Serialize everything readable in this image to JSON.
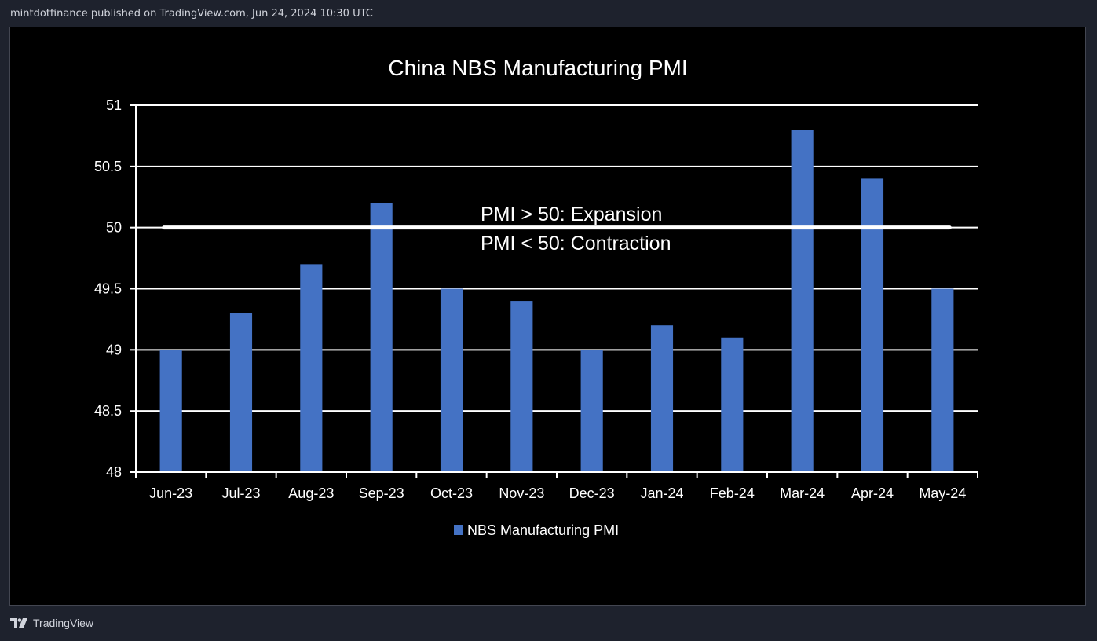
{
  "header": {
    "attribution": "mintdotfinance published on TradingView.com, Jun 24, 2024 10:30 UTC"
  },
  "footer": {
    "brand": "TradingView",
    "logo_icon": "tradingview-logo-icon"
  },
  "colors": {
    "page_bg": "#1e222d",
    "chart_bg": "#000000",
    "bar": "#4472c4",
    "grid": "#ffffff",
    "text": "#ffffff"
  },
  "chart_data": {
    "type": "bar",
    "title": "China NBS Manufacturing PMI",
    "categories": [
      "Jun-23",
      "Jul-23",
      "Aug-23",
      "Sep-23",
      "Oct-23",
      "Nov-23",
      "Dec-23",
      "Jan-24",
      "Feb-24",
      "Mar-24",
      "Apr-24",
      "May-24"
    ],
    "series": [
      {
        "name": "NBS Manufacturing PMI",
        "values": [
          49.0,
          49.3,
          49.7,
          50.2,
          49.5,
          49.4,
          49.0,
          49.2,
          49.1,
          50.8,
          50.4,
          49.5
        ]
      }
    ],
    "ylim": [
      48,
      51
    ],
    "yticks": [
      "48",
      "48.5",
      "49",
      "49.5",
      "50",
      "50.5",
      "51"
    ],
    "grid": true,
    "legend": "bottom",
    "reference_line": {
      "value": 50
    },
    "annotations": [
      "PMI > 50: Expansion",
      "PMI < 50: Contraction"
    ]
  }
}
